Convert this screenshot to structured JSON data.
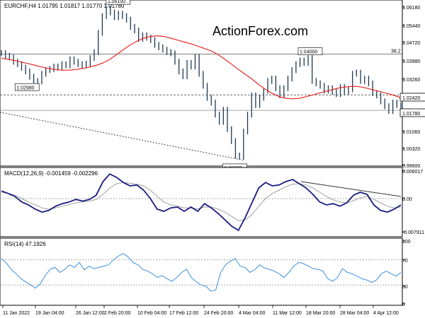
{
  "watermark": "ActionForex.com",
  "chart_data": [
    {
      "type": "candlestick",
      "symbol_header": "EURCHF,H4  1.01795 1.01817 1.01770 1.01780",
      "y_ticks": [
        "1.06180",
        "1.05440",
        "1.04720",
        "1.03980",
        "1.03260",
        "1.02420",
        "1.01780",
        "1.01060",
        "1.00320",
        "0.99600"
      ],
      "ylim": [
        0.9955,
        1.0625
      ],
      "price_labels": [
        {
          "text": "1.06100",
          "value": 1.061
        },
        {
          "text": "1.02980",
          "value": 1.0298
        },
        {
          "text": "1.04000",
          "value": 1.04
        },
        {
          "text": "0.99700",
          "value": 0.997
        }
      ],
      "fib_label": "38.2",
      "fib_level": 1.0412,
      "hline_dashed": 1.0242,
      "hline_solid": 1.0178,
      "trendline": [
        1.017,
        0.997
      ],
      "close_series": [
        1.0416,
        1.0405,
        1.0398,
        1.038,
        1.037,
        1.0355,
        1.034,
        1.0318,
        1.03,
        1.0298,
        1.033,
        1.0345,
        1.035,
        1.036,
        1.0355,
        1.037,
        1.0365,
        1.039,
        1.038,
        1.037,
        1.0365,
        1.0372,
        1.0395,
        1.042,
        1.05,
        1.057,
        1.06,
        1.0585,
        1.0565,
        1.058,
        1.057,
        1.0555,
        1.0525,
        1.051,
        1.0475,
        1.049,
        1.048,
        1.047,
        1.045,
        1.044,
        1.043,
        1.042,
        1.0415,
        1.038,
        1.034,
        1.032,
        1.0375,
        1.036,
        1.04,
        1.033,
        1.028,
        1.023,
        1.021,
        1.016,
        1.013,
        1.018,
        1.01,
        1.005,
        0.999,
        0.9985,
        1.009,
        1.016,
        1.024,
        1.02,
        1.023,
        1.026,
        1.03,
        1.031,
        1.027,
        1.024,
        1.027,
        1.031,
        1.0345,
        1.037,
        1.0385,
        1.0375,
        1.0395,
        1.03,
        1.029,
        1.028,
        1.026,
        1.027,
        1.0255,
        1.0245,
        1.0275,
        1.0255,
        1.0265,
        1.033,
        1.0335,
        1.03,
        1.031,
        1.029,
        1.025,
        1.024,
        1.0215,
        1.0195,
        1.0175,
        1.021,
        1.02,
        1.0185
      ],
      "ma_series": [
        1.0395,
        1.039,
        1.0385,
        1.0378,
        1.0372,
        1.0365,
        1.0358,
        1.0352,
        1.0348,
        1.0345,
        1.0345,
        1.0348,
        1.0352,
        1.0358,
        1.0365,
        1.0375,
        1.039,
        1.041,
        1.043,
        1.045,
        1.0465,
        1.0478,
        1.0485,
        1.0488,
        1.0485,
        1.0478,
        1.047,
        1.0462,
        1.0455,
        1.0445,
        1.0435,
        1.0425,
        1.041,
        1.039,
        1.037,
        1.0348,
        1.0328,
        1.0308,
        1.0285,
        1.0265,
        1.0248,
        1.0235,
        1.0228,
        1.0226,
        1.0228,
        1.0235,
        1.0242,
        1.025,
        1.0258,
        1.0265,
        1.0272,
        1.0276,
        1.0278,
        1.0276,
        1.027,
        1.0262,
        1.0255,
        1.0248,
        1.024,
        1.023
      ]
    },
    {
      "type": "line",
      "header": "MACD(12,26,9) -0.001459 -0.002296",
      "y_ticks": [
        "0.006017",
        "0.00",
        "-0.007911"
      ],
      "ylim": [
        -0.0085,
        0.0065
      ],
      "macd": [
        0.0018,
        0.0012,
        0.0005,
        -0.0008,
        -0.0015,
        -0.0025,
        -0.0032,
        -0.0028,
        -0.0018,
        -0.0012,
        -0.0008,
        -0.0002,
        -0.0006,
        -0.0002,
        0.0008,
        0.004,
        0.0058,
        0.005,
        0.0038,
        0.003,
        0.0032,
        0.002,
        0.0,
        -0.0025,
        -0.003,
        -0.0022,
        -0.002,
        -0.003,
        -0.002,
        -0.003,
        -0.0012,
        -0.0022,
        -0.0035,
        -0.005,
        -0.0065,
        -0.0075,
        -0.0045,
        -0.001,
        0.0025,
        0.0038,
        0.003,
        0.0032,
        0.004,
        0.0045,
        0.0035,
        0.0025,
        0.001,
        -0.0008,
        -0.0015,
        -0.0012,
        -0.0018,
        -0.001,
        0.0008,
        0.0015,
        0.001,
        -0.0015,
        -0.0028,
        -0.0032,
        -0.0025,
        -0.0015
      ],
      "signal": [
        0.0015,
        0.0012,
        0.0008,
        0.0,
        -0.0008,
        -0.0015,
        -0.0022,
        -0.0025,
        -0.0022,
        -0.0018,
        -0.0014,
        -0.001,
        -0.0008,
        -0.0006,
        -0.0002,
        0.001,
        0.0025,
        0.0035,
        0.0038,
        0.0036,
        0.0034,
        0.003,
        0.002,
        0.0005,
        -0.0008,
        -0.0015,
        -0.0018,
        -0.0022,
        -0.0022,
        -0.0024,
        -0.002,
        -0.002,
        -0.0025,
        -0.0032,
        -0.0042,
        -0.0052,
        -0.005,
        -0.0038,
        -0.0018,
        0.0,
        0.0012,
        0.002,
        0.0028,
        0.0034,
        0.0035,
        0.0032,
        0.0025,
        0.0015,
        0.0005,
        -0.0003,
        -0.0008,
        -0.001,
        -0.0005,
        0.0002,
        0.0005,
        -0.0002,
        -0.001,
        -0.0018,
        -0.0022,
        -0.002
      ],
      "trendline": [
        0.004,
        0.0005
      ]
    },
    {
      "type": "line",
      "header": "RSI(14) 47.1926",
      "y_ticks": [
        "100",
        "70",
        "30",
        "0"
      ],
      "ylim": [
        0,
        100
      ],
      "levels": [
        70,
        30
      ],
      "rsi": [
        72,
        65,
        55,
        48,
        40,
        35,
        30,
        25,
        32,
        45,
        55,
        58,
        50,
        55,
        62,
        58,
        66,
        54,
        60,
        56,
        58,
        60,
        62,
        70,
        76,
        80,
        75,
        66,
        62,
        55,
        52,
        48,
        42,
        45,
        40,
        36,
        42,
        50,
        55,
        42,
        35,
        30,
        28,
        20,
        22,
        50,
        62,
        68,
        72,
        60,
        58,
        50,
        54,
        62,
        57,
        55,
        52,
        48,
        42,
        50,
        60,
        66,
        64,
        60,
        56,
        55,
        52,
        40,
        36,
        42,
        56,
        50,
        48,
        44,
        40,
        38,
        34,
        38,
        48,
        52,
        48,
        44,
        50
      ]
    }
  ],
  "x_labels": [
    "11 Jan 2022",
    "19 Jan 04:00",
    "26 Jan 12:00",
    "2 Feb 20:00",
    "10 Feb 04:00",
    "17 Feb 12:00",
    "24 Feb 20:00",
    "4 Mar 04:00",
    "11 Mar 12:00",
    "18 Mar 20:00",
    "28 Mar 04:00",
    "4 Apr 12:00"
  ],
  "colors": {
    "candle": "#1f3a52",
    "ma": "#e8282b",
    "macd": "#1a1a80",
    "signal": "#a0a0a0",
    "rsi": "#3d8fe0",
    "watermark": "#c8c8c8",
    "axis": "#000000",
    "hline": "#555555"
  }
}
